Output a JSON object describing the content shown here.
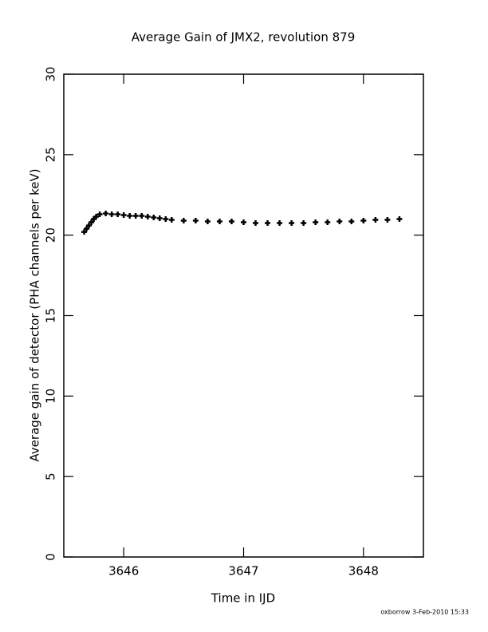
{
  "chart_data": {
    "type": "scatter",
    "title": "Average Gain of JMX2, revolution 879",
    "x_label": "Time in IJD",
    "y_label": "Average gain of detector (PHA channels per keV)",
    "footer": "oxborrow  3-Feb-2010 15:33",
    "color": "#000000",
    "xlim": [
      3645.5,
      3648.5
    ],
    "xticks": [
      3646,
      3647,
      3648
    ],
    "ylim": [
      0,
      30
    ],
    "yticks": [
      0,
      5,
      10,
      15,
      20,
      25,
      30
    ],
    "x": [
      3645.67,
      3645.69,
      3645.71,
      3645.73,
      3645.75,
      3645.77,
      3645.8,
      3645.85,
      3645.9,
      3645.95,
      3646.0,
      3646.05,
      3646.1,
      3646.15,
      3646.2,
      3646.25,
      3646.3,
      3646.35,
      3646.4,
      3646.5,
      3646.6,
      3646.7,
      3646.8,
      3646.9,
      3647.0,
      3647.1,
      3647.2,
      3647.3,
      3647.4,
      3647.5,
      3647.6,
      3647.7,
      3647.8,
      3647.9,
      3648.0,
      3648.1,
      3648.2,
      3648.3
    ],
    "values": [
      20.2,
      20.4,
      20.6,
      20.8,
      21.0,
      21.15,
      21.3,
      21.35,
      21.3,
      21.3,
      21.25,
      21.2,
      21.2,
      21.2,
      21.15,
      21.1,
      21.05,
      21.0,
      20.95,
      20.9,
      20.9,
      20.85,
      20.85,
      20.85,
      20.8,
      20.75,
      20.75,
      20.75,
      20.75,
      20.75,
      20.8,
      20.8,
      20.85,
      20.85,
      20.9,
      20.95,
      20.95,
      21.0
    ]
  }
}
